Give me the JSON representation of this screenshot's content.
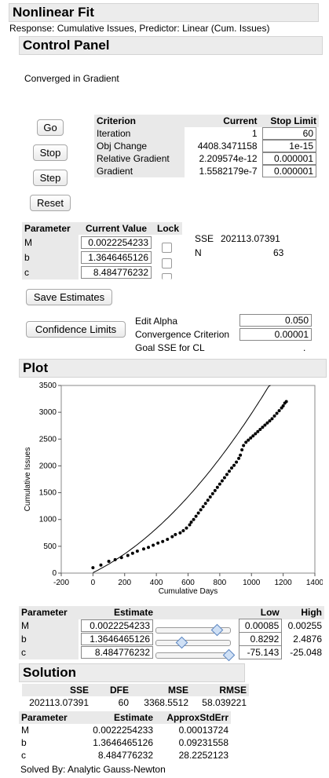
{
  "window": {
    "title": "Nonlinear Fit",
    "subtitle": "Response: Cumulative Issues, Predictor: Linear (Cum. Issues)"
  },
  "control_panel": {
    "title": "Control Panel",
    "status": "Converged in Gradient",
    "buttons": {
      "go": "Go",
      "stop": "Stop",
      "step": "Step",
      "reset": "Reset",
      "save_estimates": "Save Estimates",
      "confidence_limits": "Confidence Limits"
    },
    "criterion_table": {
      "headers": [
        "Criterion",
        "Current",
        "Stop Limit"
      ],
      "rows": [
        {
          "name": "Iteration",
          "current": "1",
          "stop": "60"
        },
        {
          "name": "Obj Change",
          "current": "4408.3471158",
          "stop": "1e-15"
        },
        {
          "name": "Relative Gradient",
          "current": "2.209574e-12",
          "stop": "0.000001"
        },
        {
          "name": "Gradient",
          "current": "1.5582179e-7",
          "stop": "0.000001"
        }
      ]
    },
    "parameter_table": {
      "headers": [
        "Parameter",
        "Current Value",
        "Lock"
      ],
      "rows": [
        {
          "name": "M",
          "value": "0.0022254233"
        },
        {
          "name": "b",
          "value": "1.3646465126"
        },
        {
          "name": "c",
          "value": "8.484776232"
        }
      ]
    },
    "sse_label": "SSE",
    "sse_value": "202113.07391",
    "n_label": "N",
    "n_value": "63",
    "edit_alpha_label": "Edit Alpha",
    "edit_alpha_value": "0.050",
    "convergence_label": "Convergence Criterion",
    "convergence_value": "0.00001",
    "goal_sse_label": "Goal SSE for CL",
    "goal_sse_value": "."
  },
  "plot": {
    "title": "Plot"
  },
  "chart_data": {
    "type": "scatter",
    "xlabel": "Cumulative Days",
    "ylabel": "Cumulative Issues",
    "xlim": [
      -200,
      1400
    ],
    "ylim": [
      0,
      3500
    ],
    "xticks": [
      -200,
      0,
      200,
      400,
      600,
      800,
      1000,
      1200,
      1400
    ],
    "yticks": [
      0,
      500,
      1000,
      1500,
      2000,
      2500,
      3000,
      3500
    ],
    "points": [
      [
        0,
        100
      ],
      [
        50,
        150
      ],
      [
        100,
        220
      ],
      [
        140,
        250
      ],
      [
        180,
        290
      ],
      [
        220,
        330
      ],
      [
        250,
        370
      ],
      [
        280,
        410
      ],
      [
        320,
        450
      ],
      [
        350,
        480
      ],
      [
        380,
        520
      ],
      [
        410,
        560
      ],
      [
        440,
        590
      ],
      [
        470,
        630
      ],
      [
        500,
        680
      ],
      [
        520,
        720
      ],
      [
        550,
        750
      ],
      [
        570,
        790
      ],
      [
        590,
        840
      ],
      [
        610,
        900
      ],
      [
        620,
        950
      ],
      [
        635,
        1000
      ],
      [
        650,
        1060
      ],
      [
        665,
        1120
      ],
      [
        680,
        1180
      ],
      [
        695,
        1240
      ],
      [
        710,
        1300
      ],
      [
        725,
        1360
      ],
      [
        740,
        1420
      ],
      [
        755,
        1480
      ],
      [
        770,
        1540
      ],
      [
        785,
        1600
      ],
      [
        800,
        1660
      ],
      [
        815,
        1720
      ],
      [
        830,
        1780
      ],
      [
        845,
        1840
      ],
      [
        860,
        1900
      ],
      [
        875,
        1960
      ],
      [
        890,
        2010
      ],
      [
        905,
        2070
      ],
      [
        920,
        2140
      ],
      [
        930,
        2200
      ],
      [
        940,
        2300
      ],
      [
        950,
        2380
      ],
      [
        965,
        2440
      ],
      [
        980,
        2480
      ],
      [
        995,
        2520
      ],
      [
        1010,
        2560
      ],
      [
        1025,
        2600
      ],
      [
        1040,
        2640
      ],
      [
        1055,
        2680
      ],
      [
        1070,
        2720
      ],
      [
        1085,
        2760
      ],
      [
        1100,
        2800
      ],
      [
        1115,
        2840
      ],
      [
        1130,
        2880
      ],
      [
        1145,
        2930
      ],
      [
        1160,
        2980
      ],
      [
        1175,
        3030
      ],
      [
        1190,
        3080
      ],
      [
        1200,
        3120
      ],
      [
        1210,
        3170
      ],
      [
        1220,
        3200
      ]
    ],
    "fit": {
      "M": 0.0022254233,
      "b": 1.3646465126,
      "c": 8.484776232
    }
  },
  "estimates": {
    "headers": [
      "Parameter",
      "Estimate",
      "Low",
      "High"
    ],
    "rows": [
      {
        "name": "M",
        "estimate": "0.0022254233",
        "low": "0.00085",
        "high": "0.00255",
        "slider": 0.83
      },
      {
        "name": "b",
        "estimate": "1.3646465126",
        "low": "0.8292",
        "high": "2.4876",
        "slider": 0.32
      },
      {
        "name": "c",
        "estimate": "8.484776232",
        "low": "-75.143",
        "high": "-25.048",
        "slider": 1.0
      }
    ]
  },
  "solution": {
    "title": "Solution",
    "headers": [
      "SSE",
      "DFE",
      "MSE",
      "RMSE"
    ],
    "values": [
      "202113.07391",
      "60",
      "3368.5512",
      "58.039221"
    ],
    "param_headers": [
      "Parameter",
      "Estimate",
      "ApproxStdErr"
    ],
    "params": [
      {
        "name": "M",
        "estimate": "0.0022254233",
        "se": "0.00013724"
      },
      {
        "name": "b",
        "estimate": "1.3646465126",
        "se": "0.09231558"
      },
      {
        "name": "c",
        "estimate": "8.484776232",
        "se": "28.2252123"
      }
    ],
    "solved_by": "Solved By: Analytic Gauss-Newton"
  },
  "colors": {
    "header_bg": "#ececec",
    "shaded": "#e9e9e9",
    "thumb": "#cfe0f5"
  }
}
